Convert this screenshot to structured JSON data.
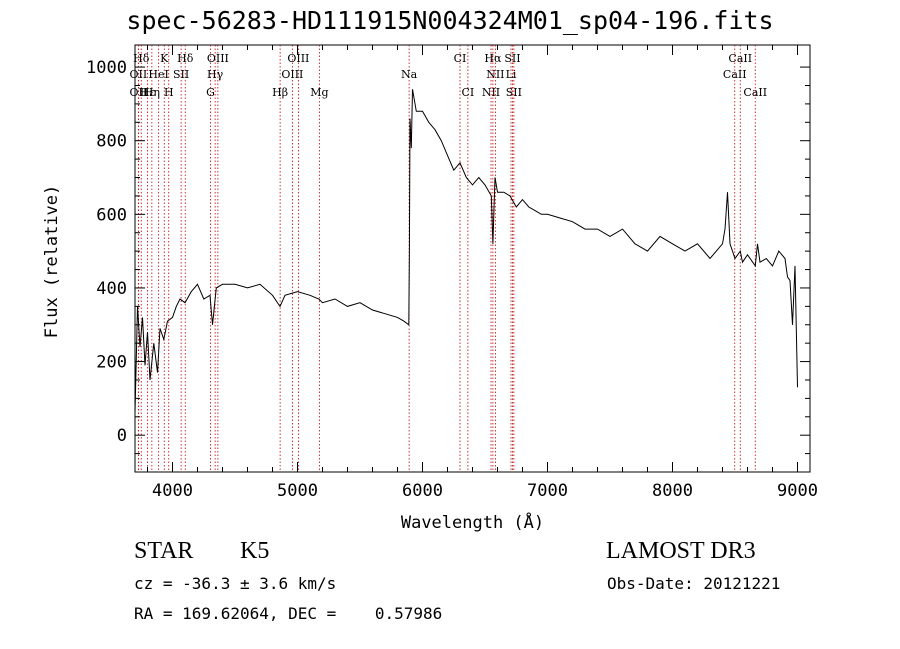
{
  "chart_data": {
    "type": "line",
    "title": "spec-56283-HD111915N004324M01_sp04-196.fits",
    "xlabel": "Wavelength (Å)",
    "ylabel": "Flux (relative)",
    "xlim": [
      3700,
      9100
    ],
    "ylim": [
      -100,
      1060
    ],
    "x_ticks": [
      4000,
      5000,
      6000,
      7000,
      8000,
      9000
    ],
    "y_ticks": [
      0,
      200,
      400,
      600,
      800,
      1000
    ],
    "grid": false,
    "series": [
      {
        "name": "flux",
        "x": [
          3700,
          3710,
          3720,
          3740,
          3760,
          3780,
          3800,
          3820,
          3850,
          3880,
          3900,
          3930,
          3960,
          4000,
          4030,
          4060,
          4100,
          4150,
          4200,
          4250,
          4300,
          4320,
          4350,
          4400,
          4500,
          4600,
          4700,
          4800,
          4860,
          4900,
          5000,
          5100,
          5170,
          5200,
          5300,
          5400,
          5500,
          5600,
          5700,
          5800,
          5850,
          5890,
          5895,
          5900,
          5910,
          5920,
          5950,
          6000,
          6050,
          6100,
          6150,
          6200,
          6250,
          6300,
          6350,
          6400,
          6450,
          6500,
          6550,
          6563,
          6580,
          6600,
          6650,
          6700,
          6750,
          6800,
          6850,
          6900,
          6950,
          7000,
          7100,
          7200,
          7300,
          7400,
          7500,
          7600,
          7700,
          7800,
          7900,
          8000,
          8100,
          8200,
          8300,
          8400,
          8420,
          8440,
          8460,
          8500,
          8542,
          8560,
          8600,
          8662,
          8680,
          8700,
          8750,
          8800,
          8850,
          8900,
          8920,
          8940,
          8960,
          8980,
          9000
        ],
        "values": [
          60,
          210,
          350,
          240,
          320,
          190,
          280,
          150,
          250,
          170,
          290,
          260,
          310,
          320,
          350,
          370,
          360,
          390,
          410,
          370,
          380,
          300,
          400,
          410,
          410,
          400,
          410,
          380,
          350,
          380,
          390,
          380,
          370,
          360,
          370,
          350,
          360,
          340,
          330,
          320,
          310,
          300,
          500,
          860,
          780,
          940,
          880,
          880,
          850,
          830,
          800,
          760,
          720,
          740,
          700,
          680,
          700,
          680,
          650,
          520,
          700,
          660,
          660,
          650,
          620,
          640,
          620,
          610,
          600,
          600,
          590,
          580,
          560,
          560,
          540,
          560,
          520,
          500,
          540,
          520,
          500,
          520,
          480,
          520,
          560,
          660,
          520,
          480,
          500,
          470,
          490,
          460,
          520,
          470,
          480,
          460,
          500,
          480,
          430,
          420,
          300,
          460,
          130
        ]
      }
    ],
    "annotations": {
      "lines": [
        {
          "label": "Hδ",
          "wavelength": 3750,
          "row": 1
        },
        {
          "label": "K",
          "wavelength": 3934,
          "row": 1
        },
        {
          "label": "Hδ",
          "wavelength": 4102,
          "row": 1
        },
        {
          "label": "OIII",
          "wavelength": 4363,
          "row": 1
        },
        {
          "label": "OIII",
          "wavelength": 5007,
          "row": 1
        },
        {
          "label": "CI",
          "wavelength": 6300,
          "row": 1
        },
        {
          "label": "Hα",
          "wavelength": 6563,
          "row": 1
        },
        {
          "label": "SII",
          "wavelength": 6720,
          "row": 1
        },
        {
          "label": "CaII",
          "wavelength": 8542,
          "row": 1
        },
        {
          "label": "OII",
          "wavelength": 3727,
          "row": 2
        },
        {
          "label": "HeI",
          "wavelength": 3889,
          "row": 2
        },
        {
          "label": "SII",
          "wavelength": 4069,
          "row": 2
        },
        {
          "label": "Hγ",
          "wavelength": 4341,
          "row": 2
        },
        {
          "label": "OIII",
          "wavelength": 4959,
          "row": 2
        },
        {
          "label": "Na",
          "wavelength": 5893,
          "row": 2
        },
        {
          "label": "NII",
          "wavelength": 6583,
          "row": 2
        },
        {
          "label": "Li",
          "wavelength": 6708,
          "row": 2
        },
        {
          "label": "CaII",
          "wavelength": 8498,
          "row": 2
        },
        {
          "label": "OII",
          "wavelength": 3727,
          "row": 3
        },
        {
          "label": "Hε",
          "wavelength": 3800,
          "row": 3
        },
        {
          "label": "Hη",
          "wavelength": 3835,
          "row": 3
        },
        {
          "label": "H",
          "wavelength": 3970,
          "row": 3
        },
        {
          "label": "G",
          "wavelength": 4304,
          "row": 3
        },
        {
          "label": "Hβ",
          "wavelength": 4861,
          "row": 3
        },
        {
          "label": "Mg",
          "wavelength": 5175,
          "row": 3
        },
        {
          "label": "CI",
          "wavelength": 6363,
          "row": 3
        },
        {
          "label": "NII",
          "wavelength": 6548,
          "row": 3
        },
        {
          "label": "SII",
          "wavelength": 6731,
          "row": 3
        },
        {
          "label": "CaII",
          "wavelength": 8662,
          "row": 3
        }
      ],
      "line_color": "#c00000"
    }
  },
  "info": {
    "object_class": "STAR",
    "subclass": "K5",
    "survey": "LAMOST DR3",
    "redshift": "cz = -36.3 ± 3.6 km/s",
    "obs_date": "Obs-Date: 20121221",
    "coords": "RA = 169.62064, DEC =    0.57986"
  }
}
